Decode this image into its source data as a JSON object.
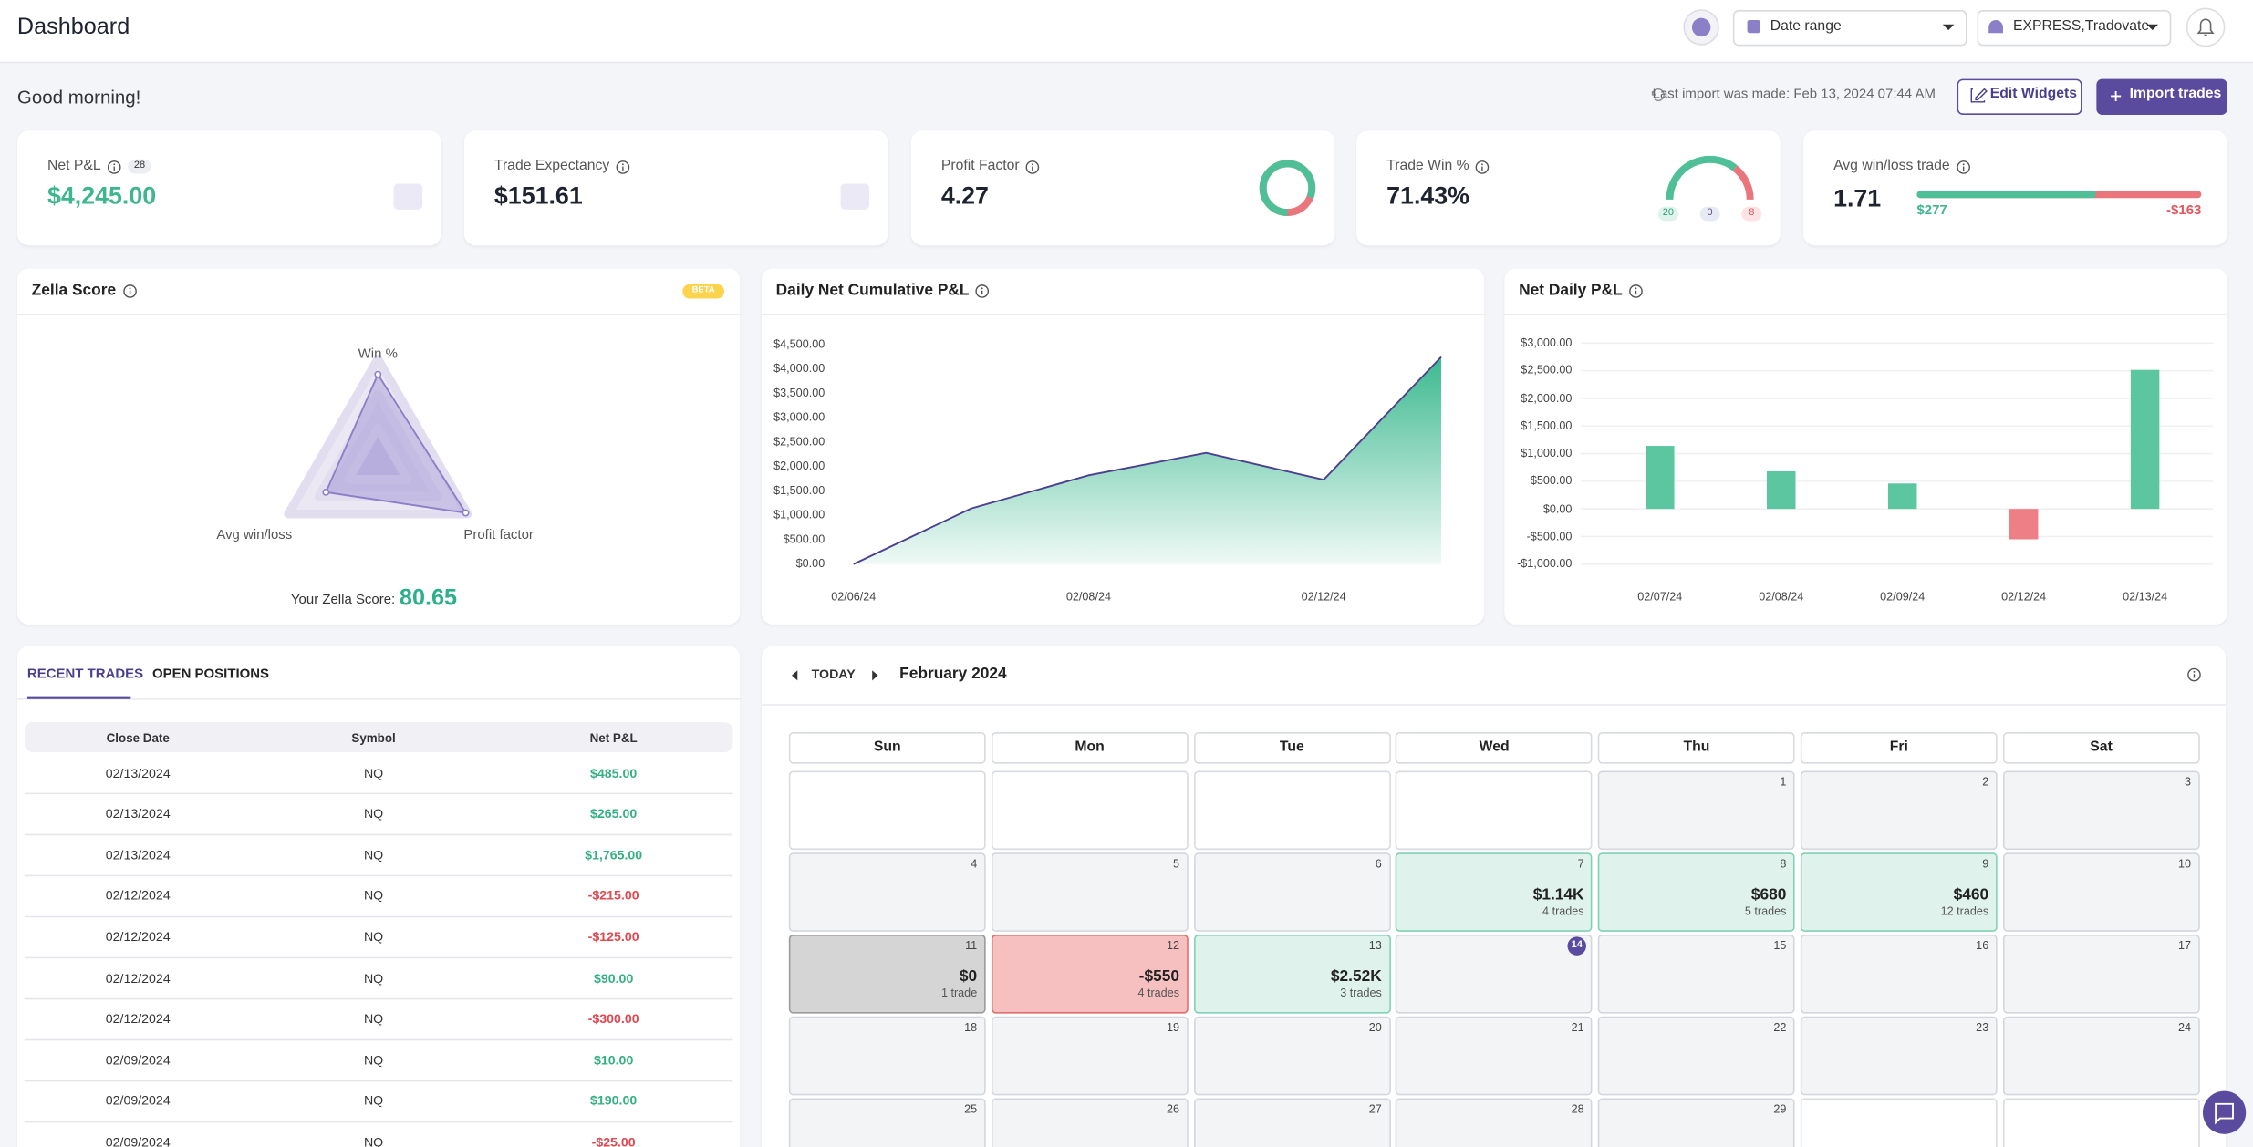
{
  "header": {
    "title": "Dashboard",
    "date_range": "Date range",
    "accounts": "EXPRESS,Tradovate"
  },
  "toolbar": {
    "greeting": "Good morning!",
    "last_import": "Last import was made: Feb 13, 2024 07:44 AM",
    "edit_button": "Edit Widgets",
    "import_button": "Import trades"
  },
  "stats": {
    "net_pnl": {
      "label": "Net P&L",
      "count": 28,
      "value": "$4,245.00"
    },
    "expectancy": {
      "label": "Trade Expectancy",
      "value": "$151.61"
    },
    "profit_factor": {
      "label": "Profit Factor",
      "value": 4.27
    },
    "win_rate": {
      "label": "Trade Win %",
      "value": "71.43%",
      "wins": 20,
      "breakeven": 0,
      "losses": 8
    },
    "avg_win_loss": {
      "label": "Avg win/loss trade",
      "value": 1.71,
      "avg_win": 277,
      "avg_win_label": "$277",
      "avg_loss": -163,
      "avg_loss_label": "-$163"
    }
  },
  "zella": {
    "title": "Zella Score",
    "badge": "BETA",
    "chart_data": {
      "type": "radar",
      "categories": [
        "Win %",
        "Profit factor",
        "Avg win/loss"
      ],
      "values": [
        85,
        98,
        58
      ],
      "ylim": [
        0,
        100
      ],
      "color": "#8b7fc8"
    },
    "score_label": "Your Zella Score:",
    "score": 80.65
  },
  "cumulative": {
    "title": "Daily Net Cumulative P&L",
    "chart_data": {
      "type": "area",
      "categories": [
        "02/06/24",
        null,
        "02/08/24",
        null,
        "02/12/24",
        null
      ],
      "values": [
        0,
        1140,
        1820,
        2280,
        1730,
        4245
      ],
      "color": "#3cb98f",
      "line_color": "#4b3f8f",
      "grid": false,
      "ylim": [
        0,
        4500
      ],
      "yticks": [
        {
          "value": 0,
          "label": "$0.00"
        },
        {
          "value": 500,
          "label": "$500.00"
        },
        {
          "value": 1000,
          "label": "$1,000.00"
        },
        {
          "value": 1500,
          "label": "$1,500.00"
        },
        {
          "value": 2000,
          "label": "$2,000.00"
        },
        {
          "value": 2500,
          "label": "$2,500.00"
        },
        {
          "value": 3000,
          "label": "$3,000.00"
        },
        {
          "value": 3500,
          "label": "$3,500.00"
        },
        {
          "value": 4000,
          "label": "$4,000.00"
        },
        {
          "value": 4500,
          "label": "$4,500.00"
        }
      ]
    }
  },
  "daily": {
    "title": "Net Daily P&L",
    "chart_data": {
      "type": "bar",
      "categories": [
        "02/07/24",
        "02/08/24",
        "02/09/24",
        "02/12/24",
        "02/13/24"
      ],
      "values": [
        1140,
        680,
        460,
        -550,
        2515
      ],
      "colors": [
        "#5cc6a0",
        "#5cc6a0",
        "#5cc6a0",
        "#ef7f86",
        "#5cc6a0"
      ],
      "grid": true,
      "ylim": [
        -1000,
        3000
      ],
      "yticks": [
        {
          "value": -1000,
          "label": "-$1,000.00"
        },
        {
          "value": -500,
          "label": "-$500.00"
        },
        {
          "value": 0,
          "label": "$0.00"
        },
        {
          "value": 500,
          "label": "$500.00"
        },
        {
          "value": 1000,
          "label": "$1,000.00"
        },
        {
          "value": 1500,
          "label": "$1,500.00"
        },
        {
          "value": 2000,
          "label": "$2,000.00"
        },
        {
          "value": 2500,
          "label": "$2,500.00"
        },
        {
          "value": 3000,
          "label": "$3,000.00"
        }
      ]
    }
  },
  "trades": {
    "tabs": [
      "RECENT TRADES",
      "OPEN POSITIONS"
    ],
    "columns": [
      "Close Date",
      "Symbol",
      "Net P&L"
    ],
    "rows": [
      [
        "02/13/2024",
        "NQ",
        "$485.00"
      ],
      [
        "02/13/2024",
        "NQ",
        "$265.00"
      ],
      [
        "02/13/2024",
        "NQ",
        "$1,765.00"
      ],
      [
        "02/12/2024",
        "NQ",
        "-$215.00"
      ],
      [
        "02/12/2024",
        "NQ",
        "-$125.00"
      ],
      [
        "02/12/2024",
        "NQ",
        "$90.00"
      ],
      [
        "02/12/2024",
        "NQ",
        "-$300.00"
      ],
      [
        "02/09/2024",
        "NQ",
        "$10.00"
      ],
      [
        "02/09/2024",
        "NQ",
        "$190.00"
      ],
      [
        "02/09/2024",
        "NQ",
        "-$25.00"
      ]
    ]
  },
  "calendar": {
    "today_button": "TODAY",
    "month": "February 2024",
    "today": 14,
    "weekdays": [
      "Sun",
      "Mon",
      "Tue",
      "Wed",
      "Thu",
      "Fri",
      "Sat"
    ],
    "weeks": [
      [
        null,
        null,
        null,
        null,
        {
          "day": 1
        },
        {
          "day": 2
        },
        {
          "day": 3
        }
      ],
      [
        {
          "day": 4
        },
        {
          "day": 5
        },
        {
          "day": 6
        },
        {
          "day": 7,
          "pnl": "$1.14K",
          "trades": "4 trades",
          "color": "#dff3ec",
          "border": "#7fd1b4"
        },
        {
          "day": 8,
          "pnl": "$680",
          "trades": "5 trades",
          "color": "#dff3ec",
          "border": "#7fd1b4"
        },
        {
          "day": 9,
          "pnl": "$460",
          "trades": "12 trades",
          "color": "#dff3ec",
          "border": "#7fd1b4"
        },
        {
          "day": 10
        }
      ],
      [
        {
          "day": 11,
          "pnl": "$0",
          "trades": "1 trade",
          "color": "#d5d5d5",
          "border": "#9a9a9a"
        },
        {
          "day": 12,
          "pnl": "-$550",
          "trades": "4 trades",
          "color": "#f7c0c0",
          "border": "#e06c6c"
        },
        {
          "day": 13,
          "pnl": "$2.52K",
          "trades": "3 trades",
          "color": "#dff3ec",
          "border": "#7fd1b4"
        },
        {
          "day": 14
        },
        {
          "day": 15
        },
        {
          "day": 16
        },
        {
          "day": 17
        }
      ],
      [
        {
          "day": 18
        },
        {
          "day": 19
        },
        {
          "day": 20
        },
        {
          "day": 21
        },
        {
          "day": 22
        },
        {
          "day": 23
        },
        {
          "day": 24
        }
      ],
      [
        {
          "day": 25
        },
        {
          "day": 26
        },
        {
          "day": 27
        },
        {
          "day": 28
        },
        {
          "day": 29
        },
        null,
        null
      ]
    ]
  }
}
